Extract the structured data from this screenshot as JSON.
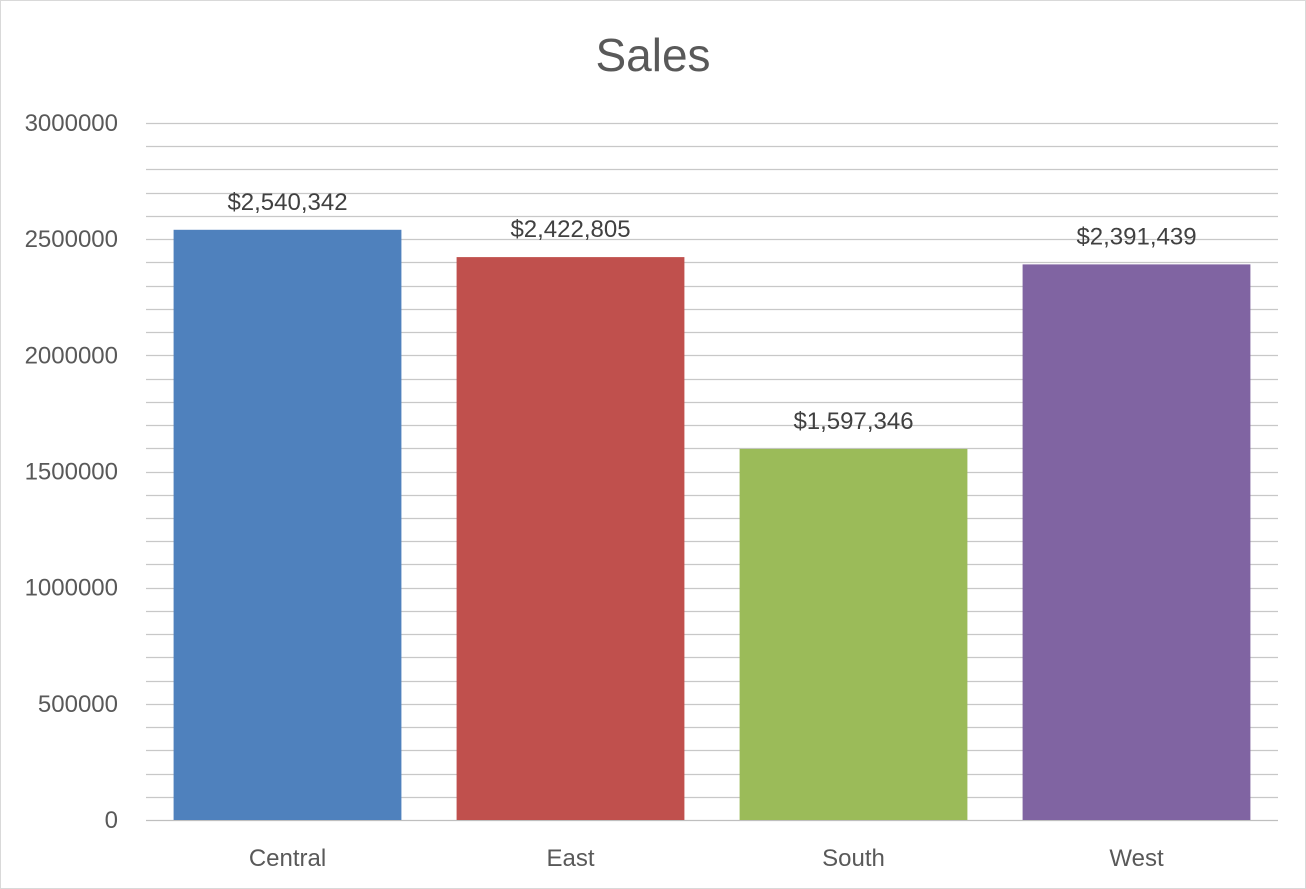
{
  "chart_data": {
    "type": "bar",
    "title": "Sales",
    "xlabel": "",
    "ylabel": "",
    "categories": [
      "Central",
      "East",
      "South",
      "West"
    ],
    "values": [
      2540342,
      2422805,
      1597346,
      2391439
    ],
    "data_labels": [
      "$2,540,342",
      "$2,422,805",
      "$1,597,346",
      "$2,391,439"
    ],
    "colors": [
      "#4f81bd",
      "#c0504d",
      "#9bbb59",
      "#8064a2"
    ],
    "ylim": [
      0,
      3000000
    ],
    "y_ticks": [
      0,
      500000,
      1000000,
      1500000,
      2000000,
      2500000,
      3000000
    ],
    "y_tick_labels": [
      "0",
      "500000",
      "1000000",
      "1500000",
      "2000000",
      "2500000",
      "3000000"
    ],
    "minor_gridline_step": 100000,
    "grid": true,
    "legend": "none"
  }
}
